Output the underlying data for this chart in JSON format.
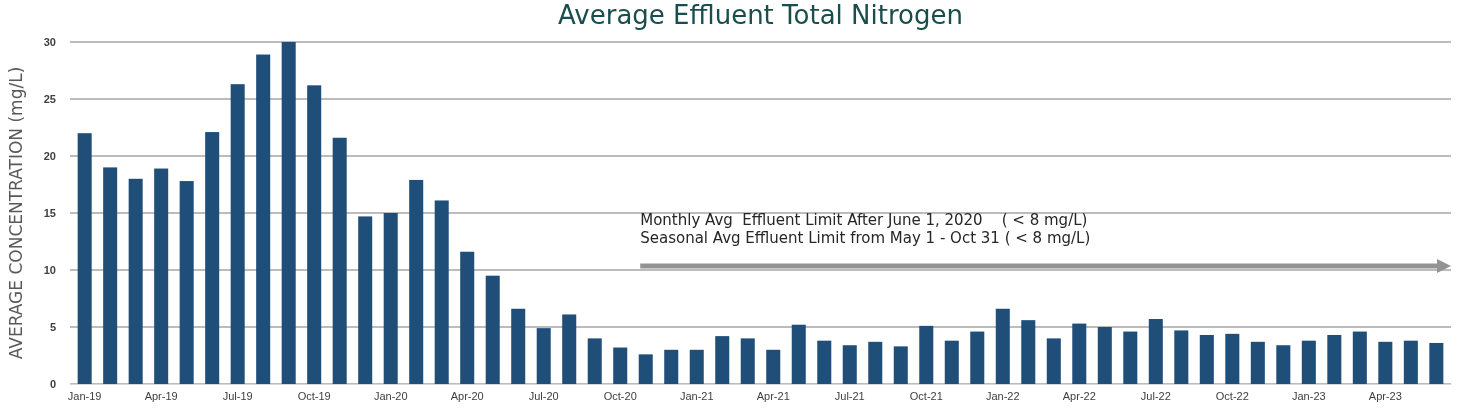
{
  "chart_data": {
    "type": "bar",
    "title": "Average Effluent Total Nitrogen",
    "ylabel": "AVERAGE CONCENTRATION (mg/L)",
    "categories": [
      "Jan-19",
      null,
      null,
      "Apr-19",
      null,
      null,
      "Jul-19",
      null,
      null,
      "Oct-19",
      null,
      null,
      "Jan-20",
      null,
      null,
      "Apr-20",
      null,
      null,
      "Jul-20",
      null,
      null,
      "Oct-20",
      null,
      null,
      "Jan-21",
      null,
      null,
      "Apr-21",
      null,
      null,
      "Jul-21",
      null,
      null,
      "Oct-21",
      null,
      null,
      "Jan-22",
      null,
      null,
      "Apr-22",
      null,
      null,
      "Jul-22",
      null,
      null,
      "Oct-22",
      null,
      null,
      "Jan-23",
      null,
      null,
      "Apr-23",
      null,
      null
    ],
    "values": [
      22,
      19,
      18,
      18.9,
      17.8,
      22.1,
      26.3,
      28.9,
      30,
      26.2,
      21.6,
      14.7,
      15,
      17.9,
      16.1,
      11.6,
      9.5,
      6.6,
      4.9,
      6.1,
      4.0,
      3.2,
      2.6,
      3.0,
      3.0,
      4.2,
      4.0,
      3.0,
      5.2,
      3.8,
      3.4,
      3.7,
      3.3,
      5.1,
      3.8,
      4.6,
      6.6,
      5.6,
      4.0,
      5.3,
      5.0,
      4.6,
      5.7,
      4.7,
      4.3,
      4.4,
      3.7,
      3.4,
      3.8,
      4.3,
      4.6,
      3.7,
      3.8,
      3.6
    ],
    "color": "#1f4e79",
    "ylim": [
      0,
      30
    ],
    "yticks": [
      0,
      5,
      10,
      15,
      20,
      25,
      30
    ],
    "grid": "y",
    "annotations": [
      "Monthly Avg  Effluent Limit After June 1, 2020    ( < 8 mg/L)",
      "Seasonal Avg Effluent Limit from May 1 - Oct 31 ( < 8 mg/L)"
    ]
  }
}
